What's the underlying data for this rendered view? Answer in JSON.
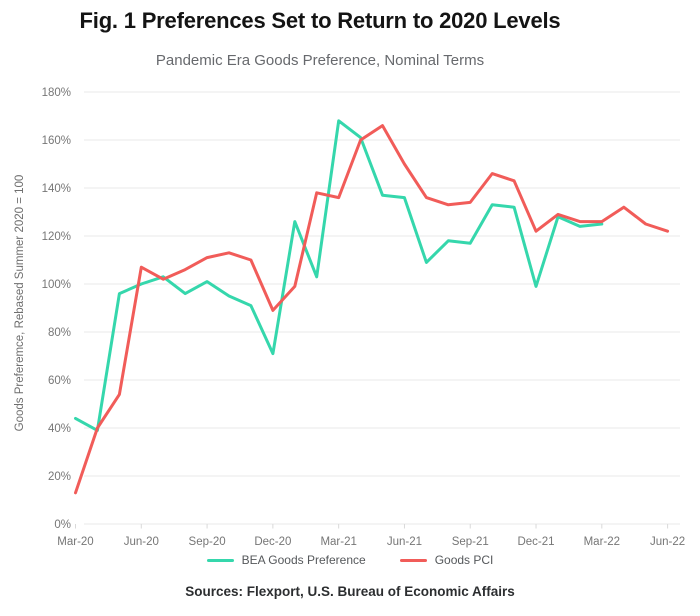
{
  "header": {
    "title": "Fig. 1 Preferences Set to Return to 2020 Levels",
    "subtitle": "Pandemic Era Goods Preference, Nominal Terms"
  },
  "y_axis_label": "Goods Preferemce, Rebased Summer 2020 = 100",
  "source_line": "Sources: Flexport, U.S. Bureau of Economic Affairs",
  "legend": {
    "items": [
      {
        "label": "BEA Goods Preference",
        "color": "#35d7ac"
      },
      {
        "label": "Goods PCI",
        "color": "#f15c59"
      }
    ]
  },
  "colors": {
    "bea_line": "#35d7ac",
    "pci_line": "#f15c59",
    "gridline": "#e9e9e9",
    "axis_tick": "#d9d9d9",
    "tick_text": "#767676",
    "title_text": "#141414",
    "subtitle_text": "#67696d",
    "source_text": "#2c2e30"
  },
  "chart_data": {
    "type": "line",
    "title": "Pandemic Era Goods Preference, Nominal Terms",
    "xlabel": "",
    "ylabel": "Goods Preferemce, Rebased Summer 2020 = 100",
    "ylim": [
      0,
      180
    ],
    "y_ticks": [
      0,
      20,
      40,
      60,
      80,
      100,
      120,
      140,
      160,
      180
    ],
    "y_tick_suffix": "%",
    "grid": "horizontal",
    "legend_position": "bottom",
    "x": [
      "Mar-20",
      "Apr-20",
      "May-20",
      "Jun-20",
      "Jul-20",
      "Aug-20",
      "Sep-20",
      "Oct-20",
      "Nov-20",
      "Dec-20",
      "Jan-21",
      "Feb-21",
      "Mar-21",
      "Apr-21",
      "May-21",
      "Jun-21",
      "Jul-21",
      "Aug-21",
      "Sep-21",
      "Oct-21",
      "Nov-21",
      "Dec-21",
      "Jan-22",
      "Feb-22",
      "Mar-22",
      "Apr-22",
      "May-22",
      "Jun-22"
    ],
    "x_tick_labels": [
      "Mar-20",
      "Jun-20",
      "Sep-20",
      "Dec-20",
      "Mar-21",
      "Jun-21",
      "Sep-21",
      "Dec-21",
      "Mar-22",
      "Jun-22"
    ],
    "x_tick_positions": [
      0,
      3,
      6,
      9,
      12,
      15,
      18,
      21,
      24,
      27
    ],
    "series": [
      {
        "name": "BEA Goods Preference",
        "color": "#35d7ac",
        "values": [
          44,
          39,
          96,
          100,
          103,
          96,
          101,
          95,
          91,
          71,
          126,
          103,
          168,
          161,
          137,
          136,
          109,
          118,
          117,
          133,
          132,
          99,
          128,
          124,
          125
        ]
      },
      {
        "name": "Goods PCI",
        "color": "#f15c59",
        "values": [
          13,
          40,
          54,
          107,
          102,
          106,
          111,
          113,
          110,
          89,
          99,
          138,
          136,
          160,
          166,
          150,
          136,
          133,
          134,
          146,
          143,
          122,
          129,
          126,
          126,
          132,
          125,
          122
        ]
      }
    ]
  }
}
